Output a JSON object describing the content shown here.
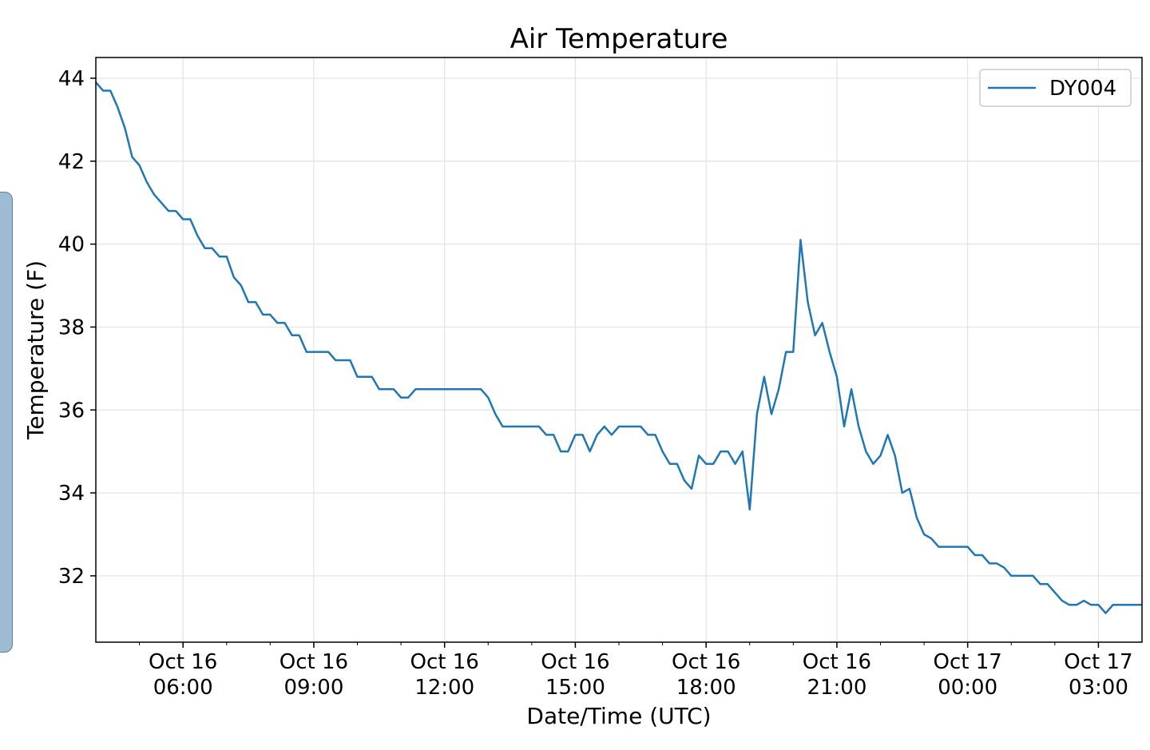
{
  "chart_data": {
    "type": "line",
    "title": "Air Temperature",
    "xlabel": "Date/Time (UTC)",
    "ylabel": "Temperature (F)",
    "xlim": [
      "2019-10-16T04:00",
      "2019-10-17T04:00"
    ],
    "ylim": [
      30.4,
      44.5
    ],
    "grid": true,
    "legend_position": "top-right",
    "y_ticks": [
      32,
      34,
      36,
      38,
      40,
      42,
      44
    ],
    "x_ticks": [
      {
        "at": "2019-10-16T06:00",
        "line1": "Oct 16",
        "line2": "06:00"
      },
      {
        "at": "2019-10-16T09:00",
        "line1": "Oct 16",
        "line2": "09:00"
      },
      {
        "at": "2019-10-16T12:00",
        "line1": "Oct 16",
        "line2": "12:00"
      },
      {
        "at": "2019-10-16T15:00",
        "line1": "Oct 16",
        "line2": "15:00"
      },
      {
        "at": "2019-10-16T18:00",
        "line1": "Oct 16",
        "line2": "18:00"
      },
      {
        "at": "2019-10-16T21:00",
        "line1": "Oct 16",
        "line2": "21:00"
      },
      {
        "at": "2019-10-17T00:00",
        "line1": "Oct 17",
        "line2": "00:00"
      },
      {
        "at": "2019-10-17T03:00",
        "line1": "Oct 17",
        "line2": "03:00"
      }
    ],
    "series": [
      {
        "name": "DY004",
        "color": "#1f77b4",
        "x": [
          "2019-10-16T04:00",
          "2019-10-16T04:10",
          "2019-10-16T04:20",
          "2019-10-16T04:30",
          "2019-10-16T04:40",
          "2019-10-16T04:50",
          "2019-10-16T05:00",
          "2019-10-16T05:10",
          "2019-10-16T05:20",
          "2019-10-16T05:30",
          "2019-10-16T05:40",
          "2019-10-16T05:50",
          "2019-10-16T06:00",
          "2019-10-16T06:10",
          "2019-10-16T06:20",
          "2019-10-16T06:30",
          "2019-10-16T06:40",
          "2019-10-16T06:50",
          "2019-10-16T07:00",
          "2019-10-16T07:10",
          "2019-10-16T07:20",
          "2019-10-16T07:30",
          "2019-10-16T07:40",
          "2019-10-16T07:50",
          "2019-10-16T08:00",
          "2019-10-16T08:10",
          "2019-10-16T08:20",
          "2019-10-16T08:30",
          "2019-10-16T08:40",
          "2019-10-16T08:50",
          "2019-10-16T09:00",
          "2019-10-16T09:10",
          "2019-10-16T09:20",
          "2019-10-16T09:30",
          "2019-10-16T09:40",
          "2019-10-16T09:50",
          "2019-10-16T10:00",
          "2019-10-16T10:10",
          "2019-10-16T10:20",
          "2019-10-16T10:30",
          "2019-10-16T10:40",
          "2019-10-16T10:50",
          "2019-10-16T11:00",
          "2019-10-16T11:10",
          "2019-10-16T11:20",
          "2019-10-16T11:30",
          "2019-10-16T11:40",
          "2019-10-16T11:50",
          "2019-10-16T12:00",
          "2019-10-16T12:10",
          "2019-10-16T12:20",
          "2019-10-16T12:30",
          "2019-10-16T12:40",
          "2019-10-16T12:50",
          "2019-10-16T13:00",
          "2019-10-16T13:10",
          "2019-10-16T13:20",
          "2019-10-16T13:30",
          "2019-10-16T13:40",
          "2019-10-16T13:50",
          "2019-10-16T14:00",
          "2019-10-16T14:10",
          "2019-10-16T14:20",
          "2019-10-16T14:30",
          "2019-10-16T14:40",
          "2019-10-16T14:50",
          "2019-10-16T15:00",
          "2019-10-16T15:10",
          "2019-10-16T15:20",
          "2019-10-16T15:30",
          "2019-10-16T15:40",
          "2019-10-16T15:50",
          "2019-10-16T16:00",
          "2019-10-16T16:10",
          "2019-10-16T16:20",
          "2019-10-16T16:30",
          "2019-10-16T16:40",
          "2019-10-16T16:50",
          "2019-10-16T17:00",
          "2019-10-16T17:10",
          "2019-10-16T17:20",
          "2019-10-16T17:30",
          "2019-10-16T17:40",
          "2019-10-16T17:50",
          "2019-10-16T18:00",
          "2019-10-16T18:10",
          "2019-10-16T18:20",
          "2019-10-16T18:30",
          "2019-10-16T18:40",
          "2019-10-16T18:50",
          "2019-10-16T19:00",
          "2019-10-16T19:10",
          "2019-10-16T19:20",
          "2019-10-16T19:30",
          "2019-10-16T19:40",
          "2019-10-16T19:50",
          "2019-10-16T20:00",
          "2019-10-16T20:10",
          "2019-10-16T20:20",
          "2019-10-16T20:30",
          "2019-10-16T20:40",
          "2019-10-16T20:50",
          "2019-10-16T21:00",
          "2019-10-16T21:10",
          "2019-10-16T21:20",
          "2019-10-16T21:30",
          "2019-10-16T21:40",
          "2019-10-16T21:50",
          "2019-10-16T22:00",
          "2019-10-16T22:10",
          "2019-10-16T22:20",
          "2019-10-16T22:30",
          "2019-10-16T22:40",
          "2019-10-16T22:50",
          "2019-10-16T23:00",
          "2019-10-16T23:10",
          "2019-10-16T23:20",
          "2019-10-16T23:30",
          "2019-10-16T23:40",
          "2019-10-16T23:50",
          "2019-10-17T00:00",
          "2019-10-17T00:10",
          "2019-10-17T00:20",
          "2019-10-17T00:30",
          "2019-10-17T00:40",
          "2019-10-17T00:50",
          "2019-10-17T01:00",
          "2019-10-17T01:10",
          "2019-10-17T01:20",
          "2019-10-17T01:30",
          "2019-10-17T01:40",
          "2019-10-17T01:50",
          "2019-10-17T02:00",
          "2019-10-17T02:10",
          "2019-10-17T02:20",
          "2019-10-17T02:30",
          "2019-10-17T02:40",
          "2019-10-17T02:50",
          "2019-10-17T03:00",
          "2019-10-17T03:10",
          "2019-10-17T03:20",
          "2019-10-17T03:30",
          "2019-10-17T03:40",
          "2019-10-17T03:50",
          "2019-10-17T04:00"
        ],
        "values": [
          43.9,
          43.7,
          43.7,
          43.3,
          42.8,
          42.1,
          41.9,
          41.5,
          41.2,
          41.0,
          40.8,
          40.8,
          40.6,
          40.6,
          40.2,
          39.9,
          39.9,
          39.7,
          39.7,
          39.2,
          39.0,
          38.6,
          38.6,
          38.3,
          38.3,
          38.1,
          38.1,
          37.8,
          37.8,
          37.4,
          37.4,
          37.4,
          37.4,
          37.2,
          37.2,
          37.2,
          36.8,
          36.8,
          36.8,
          36.5,
          36.5,
          36.5,
          36.3,
          36.3,
          36.5,
          36.5,
          36.5,
          36.5,
          36.5,
          36.5,
          36.5,
          36.5,
          36.5,
          36.5,
          36.3,
          35.9,
          35.6,
          35.6,
          35.6,
          35.6,
          35.6,
          35.6,
          35.4,
          35.4,
          35.0,
          35.0,
          35.4,
          35.4,
          35.0,
          35.4,
          35.6,
          35.4,
          35.6,
          35.6,
          35.6,
          35.6,
          35.4,
          35.4,
          35.0,
          34.7,
          34.7,
          34.3,
          34.1,
          34.9,
          34.7,
          34.7,
          35.0,
          35.0,
          34.7,
          35.0,
          33.6,
          35.9,
          36.8,
          35.9,
          36.5,
          37.4,
          37.4,
          40.1,
          38.6,
          37.8,
          38.1,
          37.4,
          36.8,
          35.6,
          36.5,
          35.6,
          35.0,
          34.7,
          34.9,
          35.4,
          34.9,
          34.0,
          34.1,
          33.4,
          33.0,
          32.9,
          32.7,
          32.7,
          32.7,
          32.7,
          32.7,
          32.5,
          32.5,
          32.3,
          32.3,
          32.2,
          32.0,
          32.0,
          32.0,
          32.0,
          31.8,
          31.8,
          31.6,
          31.4,
          31.3,
          31.3,
          31.4,
          31.3,
          31.3,
          31.1,
          31.3,
          31.3,
          31.3,
          31.3,
          31.3
        ]
      }
    ]
  }
}
